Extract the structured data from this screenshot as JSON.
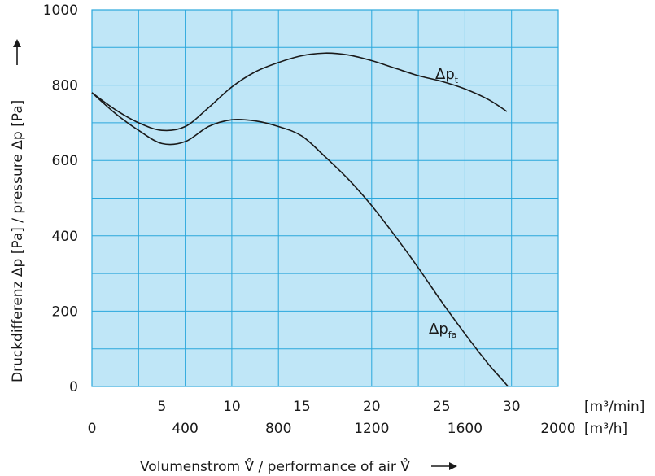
{
  "chart_data": {
    "type": "line",
    "ylabel": "Druckdifferenz Δp [Pa] / pressure Δp [Pa]",
    "xlabel": "Volumenstrom V̊ / performance of air V̊",
    "x_units": [
      "[m³/min]",
      "[m³/h]"
    ],
    "ylim": [
      0,
      1000
    ],
    "xlim_m3h": [
      0,
      2000
    ],
    "yticks": [
      0,
      200,
      400,
      600,
      800,
      1000
    ],
    "xticks_m3min": [
      5,
      10,
      15,
      20,
      25,
      30
    ],
    "xticks_m3h": [
      0,
      400,
      800,
      1200,
      1600,
      2000
    ],
    "grid": true,
    "background_color": "#bfe6f7",
    "grid_color": "#2aa7dc",
    "series": [
      {
        "name": "Δpt",
        "label_main": "Δp",
        "label_sub": "t",
        "x": [
          0,
          100,
          200,
          300,
          400,
          500,
          600,
          700,
          800,
          900,
          1000,
          1100,
          1200,
          1300,
          1400,
          1500,
          1600,
          1700,
          1780
        ],
        "y": [
          780,
          735,
          700,
          680,
          690,
          740,
          795,
          835,
          860,
          878,
          885,
          880,
          865,
          845,
          825,
          810,
          790,
          762,
          730
        ]
      },
      {
        "name": "Δpfa",
        "label_main": "Δp",
        "label_sub": "fa",
        "x": [
          0,
          100,
          200,
          300,
          400,
          500,
          600,
          700,
          800,
          900,
          1000,
          1100,
          1200,
          1300,
          1400,
          1500,
          1600,
          1700,
          1750,
          1785
        ],
        "y": [
          780,
          725,
          680,
          645,
          650,
          690,
          708,
          705,
          690,
          665,
          610,
          550,
          480,
          400,
          315,
          225,
          140,
          60,
          25,
          0
        ]
      }
    ]
  }
}
